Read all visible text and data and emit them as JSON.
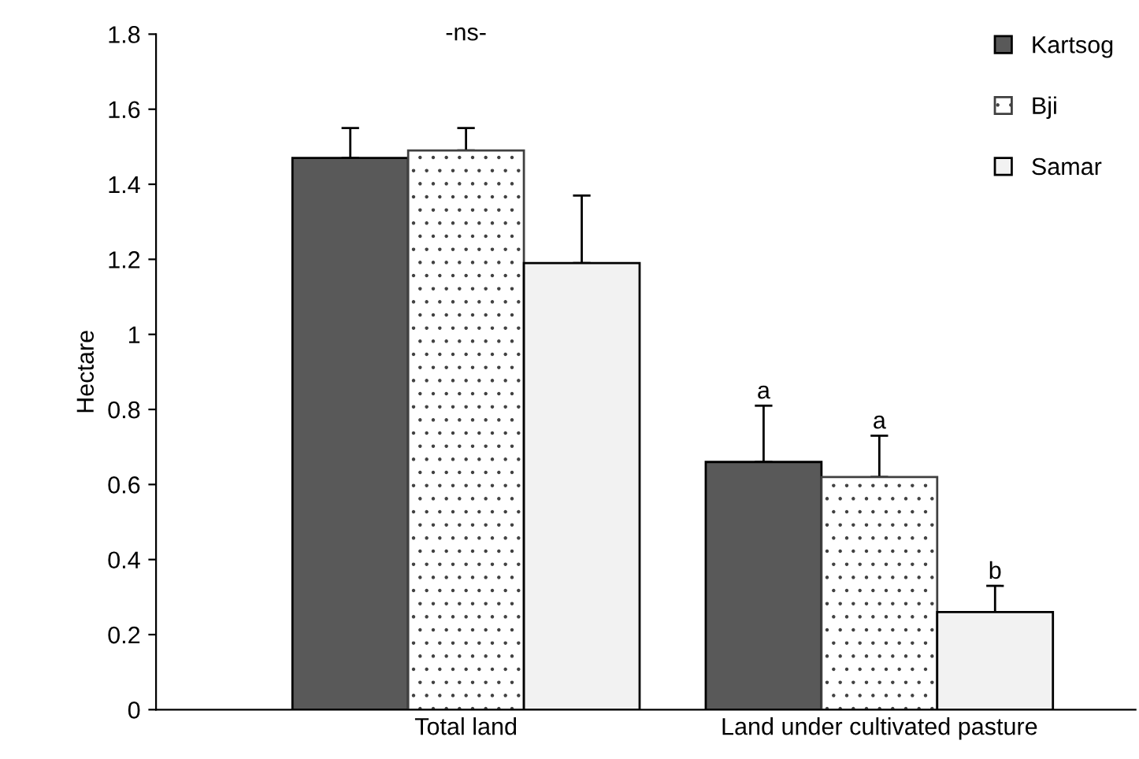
{
  "chart_data": {
    "type": "bar",
    "ylabel": "Hectare",
    "categories": [
      "Total land",
      "Land under cultivated pasture"
    ],
    "series": [
      {
        "name": "Kartsog",
        "color": "#595959",
        "values": [
          1.47,
          0.66
        ],
        "errors": [
          0.08,
          0.15
        ]
      },
      {
        "name": "Bji",
        "color": "#404040",
        "values": [
          1.49,
          0.62
        ],
        "errors": [
          0.06,
          0.11
        ]
      },
      {
        "name": "Samar",
        "color": "#f2f2f2",
        "values": [
          1.19,
          0.26
        ],
        "errors": [
          0.18,
          0.07
        ]
      }
    ],
    "ylim": [
      0,
      1.8
    ],
    "yticks": [
      0,
      0.2,
      0.4,
      0.6,
      0.8,
      1,
      1.2,
      1.4,
      1.6,
      1.8
    ],
    "annotations": [
      "-ns-",
      "a",
      "a",
      "b"
    ],
    "grid": false,
    "legend": "top right"
  }
}
